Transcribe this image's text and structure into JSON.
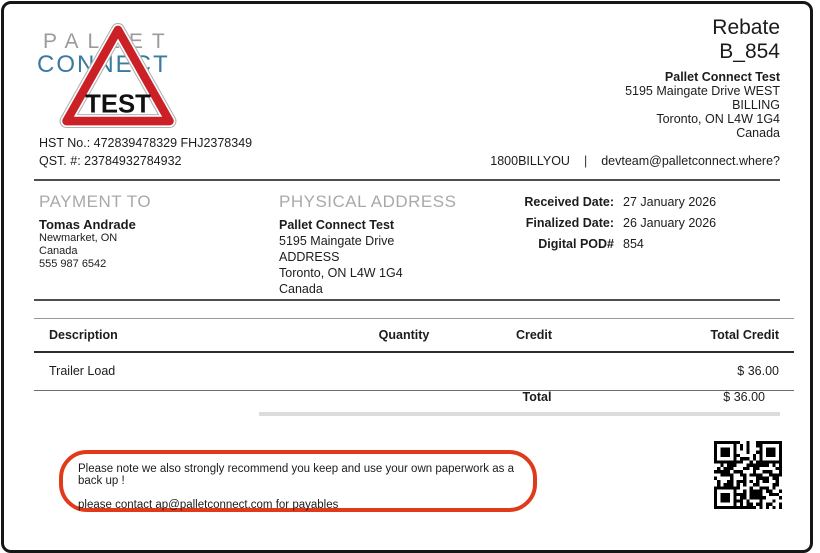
{
  "logo": {
    "word1": "PALLET",
    "word2": "CONNECT",
    "badge": "TEST"
  },
  "header": {
    "doc_type": "Rebate",
    "doc_number": "B_854",
    "company": {
      "name": "Pallet Connect Test",
      "lines": [
        "5195 Maingate Drive WEST",
        "BILLING",
        "Toronto, ON L4W 1G4",
        "Canada"
      ]
    }
  },
  "tax": {
    "hst": "HST No.: 472839478329 FHJ2378349",
    "qst": "QST. #: 23784932784932"
  },
  "contact": {
    "phone": "1800BILLYOU",
    "separator": "|",
    "email": "devteam@palletconnect.where?"
  },
  "payment_to": {
    "title": "PAYMENT TO",
    "name": "Tomas Andrade",
    "lines": [
      "Newmarket, ON",
      "Canada",
      "555 987 6542"
    ]
  },
  "physical_address": {
    "title": "PHYSICAL ADDRESS",
    "name": "Pallet Connect Test",
    "lines": [
      "5195 Maingate Drive",
      "ADDRESS",
      "Toronto, ON L4W 1G4",
      "Canada"
    ]
  },
  "details": {
    "received_label": "Received Date:",
    "received_value": "27 January 2026",
    "finalized_label": "Finalized Date:",
    "finalized_value": "26 January 2026",
    "pod_label": "Digital POD#",
    "pod_value": "854"
  },
  "items_table": {
    "headers": [
      "Description",
      "Quantity",
      "Credit",
      "Total Credit"
    ],
    "rows": [
      {
        "description": "Trailer Load",
        "quantity": "",
        "credit": "",
        "total_credit": "$ 36.00"
      }
    ],
    "total_label": "Total",
    "total_value": "$ 36.00"
  },
  "footer": {
    "note_line1": "Please note we also strongly recommend you keep and use your own paperwork as a back up !",
    "note_line2": "please contact ap@palletconnect.com for payables"
  },
  "colors": {
    "accent_red": "#e03a1a",
    "logo_gray": "#9b9b9b",
    "logo_blue": "#3b79a2",
    "triangle_red": "#cb2026"
  }
}
